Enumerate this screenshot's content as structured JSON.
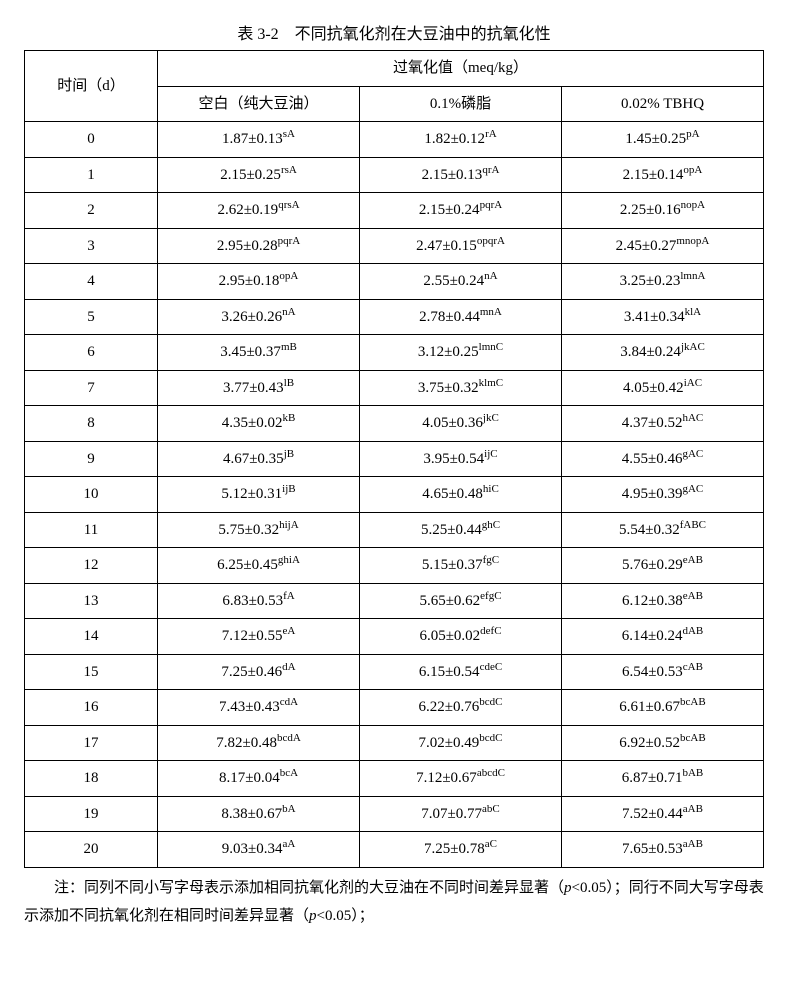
{
  "title": "表 3-2　不同抗氧化剂在大豆油中的抗氧化性",
  "header": {
    "time": "时间（d）",
    "group": "过氧化值（meq/kg）",
    "cols": [
      "空白（纯大豆油）",
      "0.1%磷脂",
      "0.02% TBHQ"
    ]
  },
  "rows": [
    {
      "t": "0",
      "c1": {
        "v": "1.87±0.13",
        "s": "sA"
      },
      "c2": {
        "v": "1.82±0.12",
        "s": "rA"
      },
      "c3": {
        "v": "1.45±0.25",
        "s": "pA"
      }
    },
    {
      "t": "1",
      "c1": {
        "v": "2.15±0.25",
        "s": "rsA"
      },
      "c2": {
        "v": "2.15±0.13",
        "s": "qrA"
      },
      "c3": {
        "v": "2.15±0.14",
        "s": "opA"
      }
    },
    {
      "t": "2",
      "c1": {
        "v": "2.62±0.19",
        "s": "qrsA"
      },
      "c2": {
        "v": "2.15±0.24",
        "s": "pqrA"
      },
      "c3": {
        "v": "2.25±0.16",
        "s": "nopA"
      }
    },
    {
      "t": "3",
      "c1": {
        "v": "2.95±0.28",
        "s": "pqrA"
      },
      "c2": {
        "v": "2.47±0.15",
        "s": "opqrA"
      },
      "c3": {
        "v": "2.45±0.27",
        "s": "mnopA"
      }
    },
    {
      "t": "4",
      "c1": {
        "v": "2.95±0.18",
        "s": "opA"
      },
      "c2": {
        "v": "2.55±0.24",
        "s": "nA"
      },
      "c3": {
        "v": "3.25±0.23",
        "s": "lmnA"
      }
    },
    {
      "t": "5",
      "c1": {
        "v": "3.26±0.26",
        "s": "nA"
      },
      "c2": {
        "v": "2.78±0.44",
        "s": "mnA"
      },
      "c3": {
        "v": "3.41±0.34",
        "s": "klA"
      }
    },
    {
      "t": "6",
      "c1": {
        "v": "3.45±0.37",
        "s": "mB"
      },
      "c2": {
        "v": "3.12±0.25",
        "s": "lmnC"
      },
      "c3": {
        "v": "3.84±0.24",
        "s": "jkAC"
      }
    },
    {
      "t": "7",
      "c1": {
        "v": "3.77±0.43",
        "s": "lB"
      },
      "c2": {
        "v": "3.75±0.32",
        "s": "klmC"
      },
      "c3": {
        "v": "4.05±0.42",
        "s": "iAC"
      }
    },
    {
      "t": "8",
      "c1": {
        "v": "4.35±0.02",
        "s": "kB"
      },
      "c2": {
        "v": "4.05±0.36",
        "s": "jkC"
      },
      "c3": {
        "v": "4.37±0.52",
        "s": "hAC"
      }
    },
    {
      "t": "9",
      "c1": {
        "v": "4.67±0.35",
        "s": "jB"
      },
      "c2": {
        "v": "3.95±0.54",
        "s": "ijC"
      },
      "c3": {
        "v": "4.55±0.46",
        "s": "gAC"
      }
    },
    {
      "t": "10",
      "c1": {
        "v": "5.12±0.31",
        "s": "ijB"
      },
      "c2": {
        "v": "4.65±0.48",
        "s": "hiC"
      },
      "c3": {
        "v": "4.95±0.39",
        "s": "gAC"
      }
    },
    {
      "t": "11",
      "c1": {
        "v": "5.75±0.32",
        "s": "hijA"
      },
      "c2": {
        "v": "5.25±0.44",
        "s": "ghC"
      },
      "c3": {
        "v": "5.54±0.32",
        "s": "fABC"
      }
    },
    {
      "t": "12",
      "c1": {
        "v": "6.25±0.45",
        "s": "ghiA"
      },
      "c2": {
        "v": "5.15±0.37",
        "s": "fgC"
      },
      "c3": {
        "v": "5.76±0.29",
        "s": "eAB"
      }
    },
    {
      "t": "13",
      "c1": {
        "v": "6.83±0.53",
        "s": "fA"
      },
      "c2": {
        "v": "5.65±0.62",
        "s": "efgC"
      },
      "c3": {
        "v": "6.12±0.38",
        "s": "eAB"
      }
    },
    {
      "t": "14",
      "c1": {
        "v": "7.12±0.55",
        "s": "eA"
      },
      "c2": {
        "v": "6.05±0.02",
        "s": "defC"
      },
      "c3": {
        "v": "6.14±0.24",
        "s": "dAB"
      }
    },
    {
      "t": "15",
      "c1": {
        "v": "7.25±0.46",
        "s": "dA"
      },
      "c2": {
        "v": "6.15±0.54",
        "s": "cdeC"
      },
      "c3": {
        "v": "6.54±0.53",
        "s": "cAB"
      }
    },
    {
      "t": "16",
      "c1": {
        "v": "7.43±0.43",
        "s": "cdA"
      },
      "c2": {
        "v": "6.22±0.76",
        "s": "bcdC"
      },
      "c3": {
        "v": "6.61±0.67",
        "s": "bcAB"
      }
    },
    {
      "t": "17",
      "c1": {
        "v": "7.82±0.48",
        "s": "bcdA"
      },
      "c2": {
        "v": "7.02±0.49",
        "s": "bcdC"
      },
      "c3": {
        "v": "6.92±0.52",
        "s": "bcAB"
      }
    },
    {
      "t": "18",
      "c1": {
        "v": "8.17±0.04",
        "s": "bcA"
      },
      "c2": {
        "v": "7.12±0.67",
        "s": "abcdC"
      },
      "c3": {
        "v": "6.87±0.71",
        "s": "bAB"
      }
    },
    {
      "t": "19",
      "c1": {
        "v": "8.38±0.67",
        "s": "bA"
      },
      "c2": {
        "v": "7.07±0.77",
        "s": "abC"
      },
      "c3": {
        "v": "7.52±0.44",
        "s": "aAB"
      }
    },
    {
      "t": "20",
      "c1": {
        "v": "9.03±0.34",
        "s": "aA"
      },
      "c2": {
        "v": "7.25±0.78",
        "s": "aC"
      },
      "c3": {
        "v": "7.65±0.53",
        "s": "aAB"
      }
    }
  ],
  "footnote": {
    "prefix": "注：同列不同小写字母表示添加相同抗氧化剂的大豆油在不同时间差异显著（",
    "p1": "p",
    "mid1": "<0.05）；同行不同大写字母表示添加不同抗氧化剂在相同时间差异显著（",
    "p2": "p",
    "suffix": "<0.05）；"
  },
  "style": {
    "font_family": "SimSun, Times New Roman, serif",
    "title_fontsize": 16,
    "cell_fontsize": 15,
    "sup_fontsize": 11,
    "border_color": "#000000",
    "background_color": "#ffffff",
    "text_color": "#000000"
  }
}
